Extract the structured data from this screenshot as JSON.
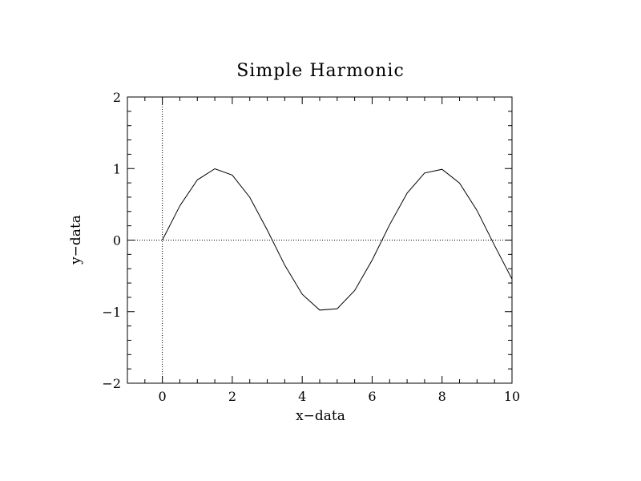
{
  "chart_data": {
    "type": "line",
    "title": "Simple Harmonic",
    "xlabel": "x−data",
    "ylabel": "y−data",
    "xlim": [
      -1,
      10
    ],
    "ylim": [
      -2,
      2
    ],
    "x_ticks": [
      0,
      2,
      4,
      6,
      8,
      10
    ],
    "x_tick_labels": [
      "0",
      "2",
      "4",
      "6",
      "8",
      "10"
    ],
    "y_ticks": [
      -2,
      -1,
      0,
      1,
      2
    ],
    "y_tick_labels": [
      "−2",
      "−1",
      "0",
      "1",
      "2"
    ],
    "grid": false,
    "reference_lines": {
      "x": 0,
      "y": 0,
      "style": "dotted"
    },
    "series": [
      {
        "x": [
          0,
          0.5,
          1,
          1.5,
          2,
          2.5,
          3,
          3.5,
          4,
          4.5,
          5,
          5.5,
          6,
          6.5,
          7,
          7.5,
          8,
          8.5,
          9,
          9.5,
          10
        ],
        "y": [
          0,
          0.479,
          0.841,
          0.997,
          0.909,
          0.598,
          0.141,
          -0.351,
          -0.757,
          -0.978,
          -0.959,
          -0.706,
          -0.279,
          0.215,
          0.657,
          0.938,
          0.989,
          0.798,
          0.412,
          -0.075,
          -0.544
        ]
      }
    ],
    "colors": {
      "line": "#000000",
      "axes": "#000000",
      "background": "#ffffff"
    }
  }
}
